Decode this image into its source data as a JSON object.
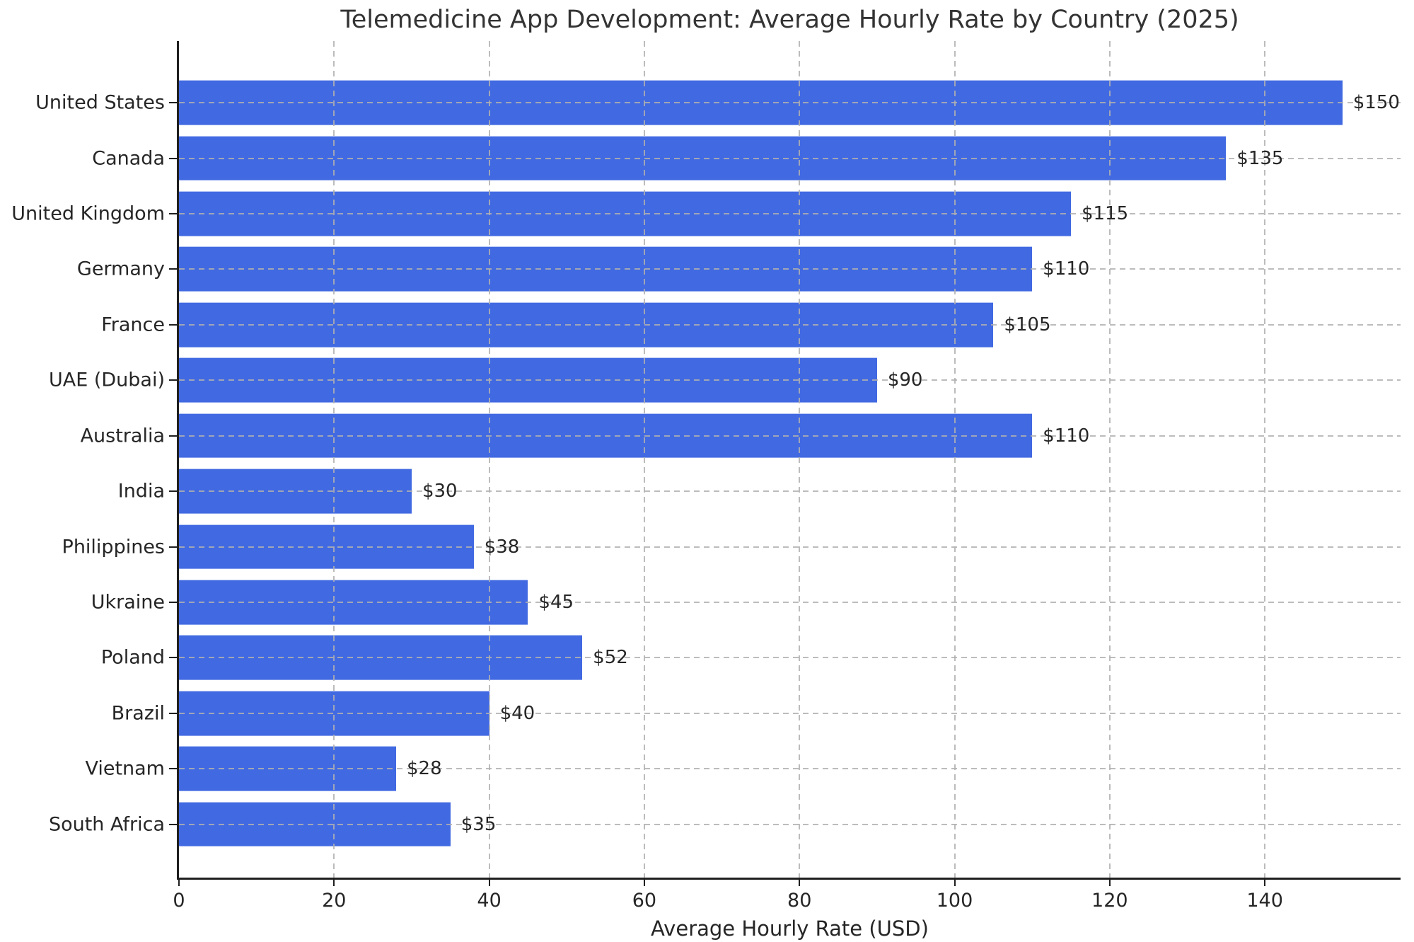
{
  "title": "Telemedicine App Development: Average Hourly Rate by Country (2025)",
  "chart_data": {
    "type": "bar",
    "orientation": "horizontal",
    "title": "Telemedicine App Development: Average Hourly Rate by Country (2025)",
    "categories": [
      "United States",
      "Canada",
      "United Kingdom",
      "Germany",
      "France",
      "UAE (Dubai)",
      "Australia",
      "India",
      "Philippines",
      "Ukraine",
      "Poland",
      "Brazil",
      "Vietnam",
      "South Africa"
    ],
    "values": [
      150,
      135,
      115,
      110,
      105,
      90,
      110,
      30,
      38,
      45,
      52,
      40,
      28,
      35
    ],
    "value_labels": [
      "$150",
      "$135",
      "$115",
      "$110",
      "$105",
      "$90",
      "$110",
      "$30",
      "$38",
      "$45",
      "$52",
      "$40",
      "$28",
      "$35"
    ],
    "xlabel": "Average Hourly Rate (USD)",
    "ylabel": "",
    "xlim": [
      0,
      157.5
    ],
    "x_ticks": [
      0,
      20,
      40,
      60,
      80,
      100,
      120,
      140
    ],
    "x_tick_labels": [
      "0",
      "20",
      "40",
      "60",
      "80",
      "100",
      "120",
      "140"
    ],
    "grid": "dashed gridlines on both axes, drawn over bars",
    "legend_position": "none",
    "bar_color": "#4169E1",
    "background_color": "#ffffff",
    "text_color": "#262626"
  }
}
